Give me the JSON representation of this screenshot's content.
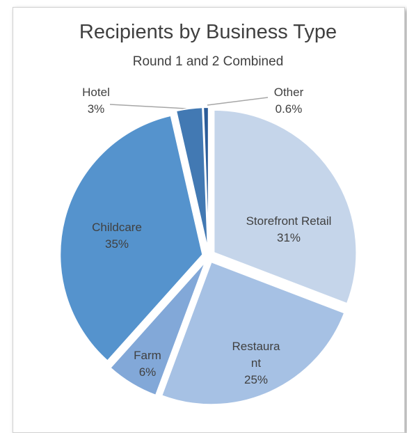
{
  "chart_data": {
    "type": "pie",
    "title": "Recipients by Business Type",
    "subtitle": "Round 1 and 2 Combined",
    "categories": [
      "Storefront Retail",
      "Restaurant",
      "Farm",
      "Childcare",
      "Hotel",
      "Other"
    ],
    "values": [
      31,
      25,
      6,
      35,
      3,
      0.6
    ],
    "value_labels": [
      "31%",
      "25%",
      "6%",
      "35%",
      "3%",
      "0.6%"
    ],
    "colors": [
      "#c5d5ea",
      "#a6c1e4",
      "#82a8d8",
      "#5593cd",
      "#4279b3",
      "#2b5c98"
    ]
  }
}
